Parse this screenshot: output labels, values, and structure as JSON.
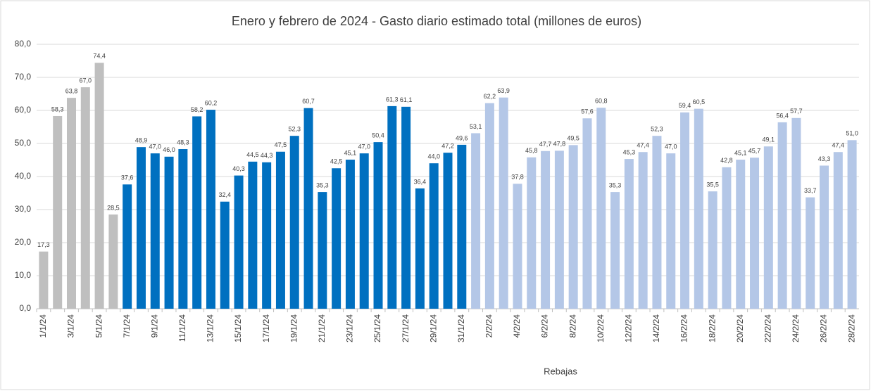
{
  "chart_data": {
    "type": "bar",
    "title": "Enero y febrero de 2024 - Gasto diario estimado total (millones de euros)",
    "x_label": "Rebajas",
    "categories": [
      "1/1/24",
      null,
      "3/1/24",
      null,
      "5/1/24",
      null,
      "7/1/24",
      null,
      "9/1/24",
      null,
      "11/1/24",
      null,
      "13/1/24",
      null,
      "15/1/24",
      null,
      "17/1/24",
      null,
      "19/1/24",
      null,
      "21/1/24",
      null,
      "23/1/24",
      null,
      "25/1/24",
      null,
      "27/1/24",
      null,
      "29/1/24",
      null,
      "31/1/24",
      null,
      "2/2/24",
      null,
      "4/2/24",
      null,
      "6/2/24",
      null,
      "8/2/24",
      null,
      "10/2/24",
      null,
      "12/2/24",
      null,
      "14/2/24",
      null,
      "16/2/24",
      null,
      "18/2/24",
      null,
      "20/2/24",
      null,
      "22/2/24",
      null,
      "24/2/24",
      null,
      "26/2/24",
      null,
      "28/2/24"
    ],
    "values": [
      17.3,
      58.3,
      63.8,
      67.0,
      74.4,
      28.5,
      37.6,
      48.9,
      47.0,
      46.0,
      48.3,
      58.2,
      60.2,
      32.4,
      40.3,
      44.5,
      44.3,
      47.5,
      52.3,
      60.7,
      35.3,
      42.5,
      45.1,
      47.0,
      50.4,
      61.3,
      61.1,
      36.4,
      44.0,
      47.2,
      49.6,
      53.1,
      62.2,
      63.9,
      37.8,
      45.8,
      47.7,
      47.8,
      49.5,
      57.6,
      60.8,
      35.3,
      45.3,
      47.4,
      52.3,
      47.0,
      59.4,
      60.5,
      35.5,
      42.8,
      45.1,
      45.7,
      49.1,
      56.4,
      57.7,
      33.7,
      43.3,
      47.4,
      51.0
    ],
    "value_labels": [
      "17,3",
      "58,3",
      "63,8",
      "67,0",
      "74,4",
      "28,5",
      "37,6",
      "48,9",
      "47,0",
      "46,0",
      "48,3",
      "58,2",
      "60,2",
      "32,4",
      "40,3",
      "44,5",
      "44,3",
      "47,5",
      "52,3",
      "60,7",
      "35,3",
      "42,5",
      "45,1",
      "47,0",
      "50,4",
      "61,3",
      "61,1",
      "36,4",
      "44,0",
      "47,2",
      "49,6",
      "53,1",
      "62,2",
      "63,9",
      "37,8",
      "45,8",
      "47,7",
      "47,8",
      "49,5",
      "57,6",
      "60,8",
      "35,3",
      "45,3",
      "47,4",
      "52,3",
      "47,0",
      "59,4",
      "60,5",
      "35,5",
      "42,8",
      "45,1",
      "45,7",
      "49,1",
      "56,4",
      "57,7",
      "33,7",
      "43,3",
      "47,4",
      "51,0"
    ],
    "colors": [
      "#bfbfbf",
      "#bfbfbf",
      "#bfbfbf",
      "#bfbfbf",
      "#bfbfbf",
      "#bfbfbf",
      "#0070c0",
      "#0070c0",
      "#0070c0",
      "#0070c0",
      "#0070c0",
      "#0070c0",
      "#0070c0",
      "#0070c0",
      "#0070c0",
      "#0070c0",
      "#0070c0",
      "#0070c0",
      "#0070c0",
      "#0070c0",
      "#0070c0",
      "#0070c0",
      "#0070c0",
      "#0070c0",
      "#0070c0",
      "#0070c0",
      "#0070c0",
      "#0070c0",
      "#0070c0",
      "#0070c0",
      "#0070c0",
      "#b4c7e7",
      "#b4c7e7",
      "#b4c7e7",
      "#b4c7e7",
      "#b4c7e7",
      "#b4c7e7",
      "#b4c7e7",
      "#b4c7e7",
      "#b4c7e7",
      "#b4c7e7",
      "#b4c7e7",
      "#b4c7e7",
      "#b4c7e7",
      "#b4c7e7",
      "#b4c7e7",
      "#b4c7e7",
      "#b4c7e7",
      "#b4c7e7",
      "#b4c7e7",
      "#b4c7e7",
      "#b4c7e7",
      "#b4c7e7",
      "#b4c7e7",
      "#b4c7e7",
      "#b4c7e7",
      "#b4c7e7",
      "#b4c7e7",
      "#b4c7e7"
    ],
    "ylim": [
      0,
      80
    ],
    "yticks": [
      {
        "value": 0,
        "label": "0,0"
      },
      {
        "value": 10,
        "label": "10,0"
      },
      {
        "value": 20,
        "label": "20,0"
      },
      {
        "value": 30,
        "label": "30,0"
      },
      {
        "value": 40,
        "label": "40,0"
      },
      {
        "value": 50,
        "label": "50,0"
      },
      {
        "value": 60,
        "label": "60,0"
      },
      {
        "value": 70,
        "label": "70,0"
      },
      {
        "value": 80,
        "label": "80,0"
      }
    ],
    "grid": true
  }
}
